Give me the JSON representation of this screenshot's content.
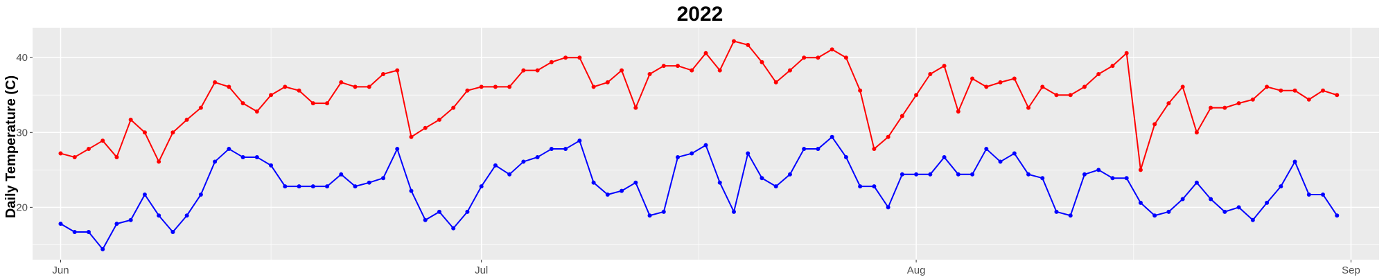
{
  "chart_data": {
    "type": "line",
    "title": "2022",
    "xlabel": "",
    "ylabel": "Daily Temperature (C)",
    "x_start": "2022-06-01",
    "xlim": [
      "2022-05-30",
      "2022-09-03"
    ],
    "ylim": [
      13,
      44
    ],
    "x_ticks": [
      {
        "label": "Jun",
        "date": "2022-06-01"
      },
      {
        "label": "Jul",
        "date": "2022-07-01"
      },
      {
        "label": "Aug",
        "date": "2022-08-01"
      },
      {
        "label": "Sep",
        "date": "2022-09-01"
      }
    ],
    "y_ticks": [
      20,
      30,
      40
    ],
    "grid": true,
    "legend": "none",
    "background": "#ebebeb",
    "series": [
      {
        "color": "#ff0000",
        "values": [
          27.2,
          26.7,
          27.8,
          28.9,
          26.7,
          31.7,
          30.0,
          26.1,
          30.0,
          31.7,
          33.3,
          36.7,
          36.1,
          33.9,
          32.8,
          35.0,
          36.1,
          35.6,
          33.9,
          33.9,
          36.7,
          36.1,
          36.1,
          37.8,
          38.3,
          29.4,
          30.6,
          31.7,
          33.3,
          35.6,
          36.1,
          36.1,
          36.1,
          38.3,
          38.3,
          39.4,
          40.0,
          40.0,
          36.1,
          36.7,
          38.3,
          33.3,
          37.8,
          38.9,
          38.9,
          38.3,
          40.6,
          38.3,
          42.2,
          41.7,
          39.4,
          36.7,
          38.3,
          40.0,
          40.0,
          41.1,
          40.0,
          35.6,
          27.8,
          29.4,
          32.2,
          35.0,
          37.8,
          38.9,
          32.8,
          37.2,
          36.1,
          36.7,
          37.2,
          33.3,
          36.1,
          35.0,
          35.0,
          36.1,
          37.8,
          38.9,
          40.6,
          25.0,
          31.1,
          33.9,
          36.1,
          30.0,
          33.3,
          33.3,
          33.9,
          34.4,
          36.1,
          35.6,
          35.6,
          34.4,
          35.6,
          35.0
        ]
      },
      {
        "color": "#0000ff",
        "values": [
          17.8,
          16.7,
          16.7,
          14.4,
          17.8,
          18.3,
          21.7,
          18.9,
          16.7,
          18.9,
          21.7,
          26.1,
          27.8,
          26.7,
          26.7,
          25.6,
          22.8,
          22.8,
          22.8,
          22.8,
          24.4,
          22.8,
          23.3,
          23.9,
          27.8,
          22.2,
          18.3,
          19.4,
          17.2,
          19.4,
          22.8,
          25.6,
          24.4,
          26.1,
          26.7,
          27.8,
          27.8,
          28.9,
          23.3,
          21.7,
          22.2,
          23.3,
          18.9,
          19.4,
          26.7,
          27.2,
          28.3,
          23.3,
          19.4,
          27.2,
          23.9,
          22.8,
          24.4,
          27.8,
          27.8,
          29.4,
          26.7,
          22.8,
          22.8,
          20.0,
          24.4,
          24.4,
          24.4,
          26.7,
          24.4,
          24.4,
          27.8,
          26.1,
          27.2,
          24.4,
          23.9,
          19.4,
          18.9,
          24.4,
          25.0,
          23.9,
          23.9,
          20.6,
          18.9,
          19.4,
          21.1,
          23.3,
          21.1,
          19.4,
          20.0,
          18.3,
          20.6,
          22.8,
          26.1,
          21.7,
          21.7,
          18.9
        ]
      }
    ]
  }
}
